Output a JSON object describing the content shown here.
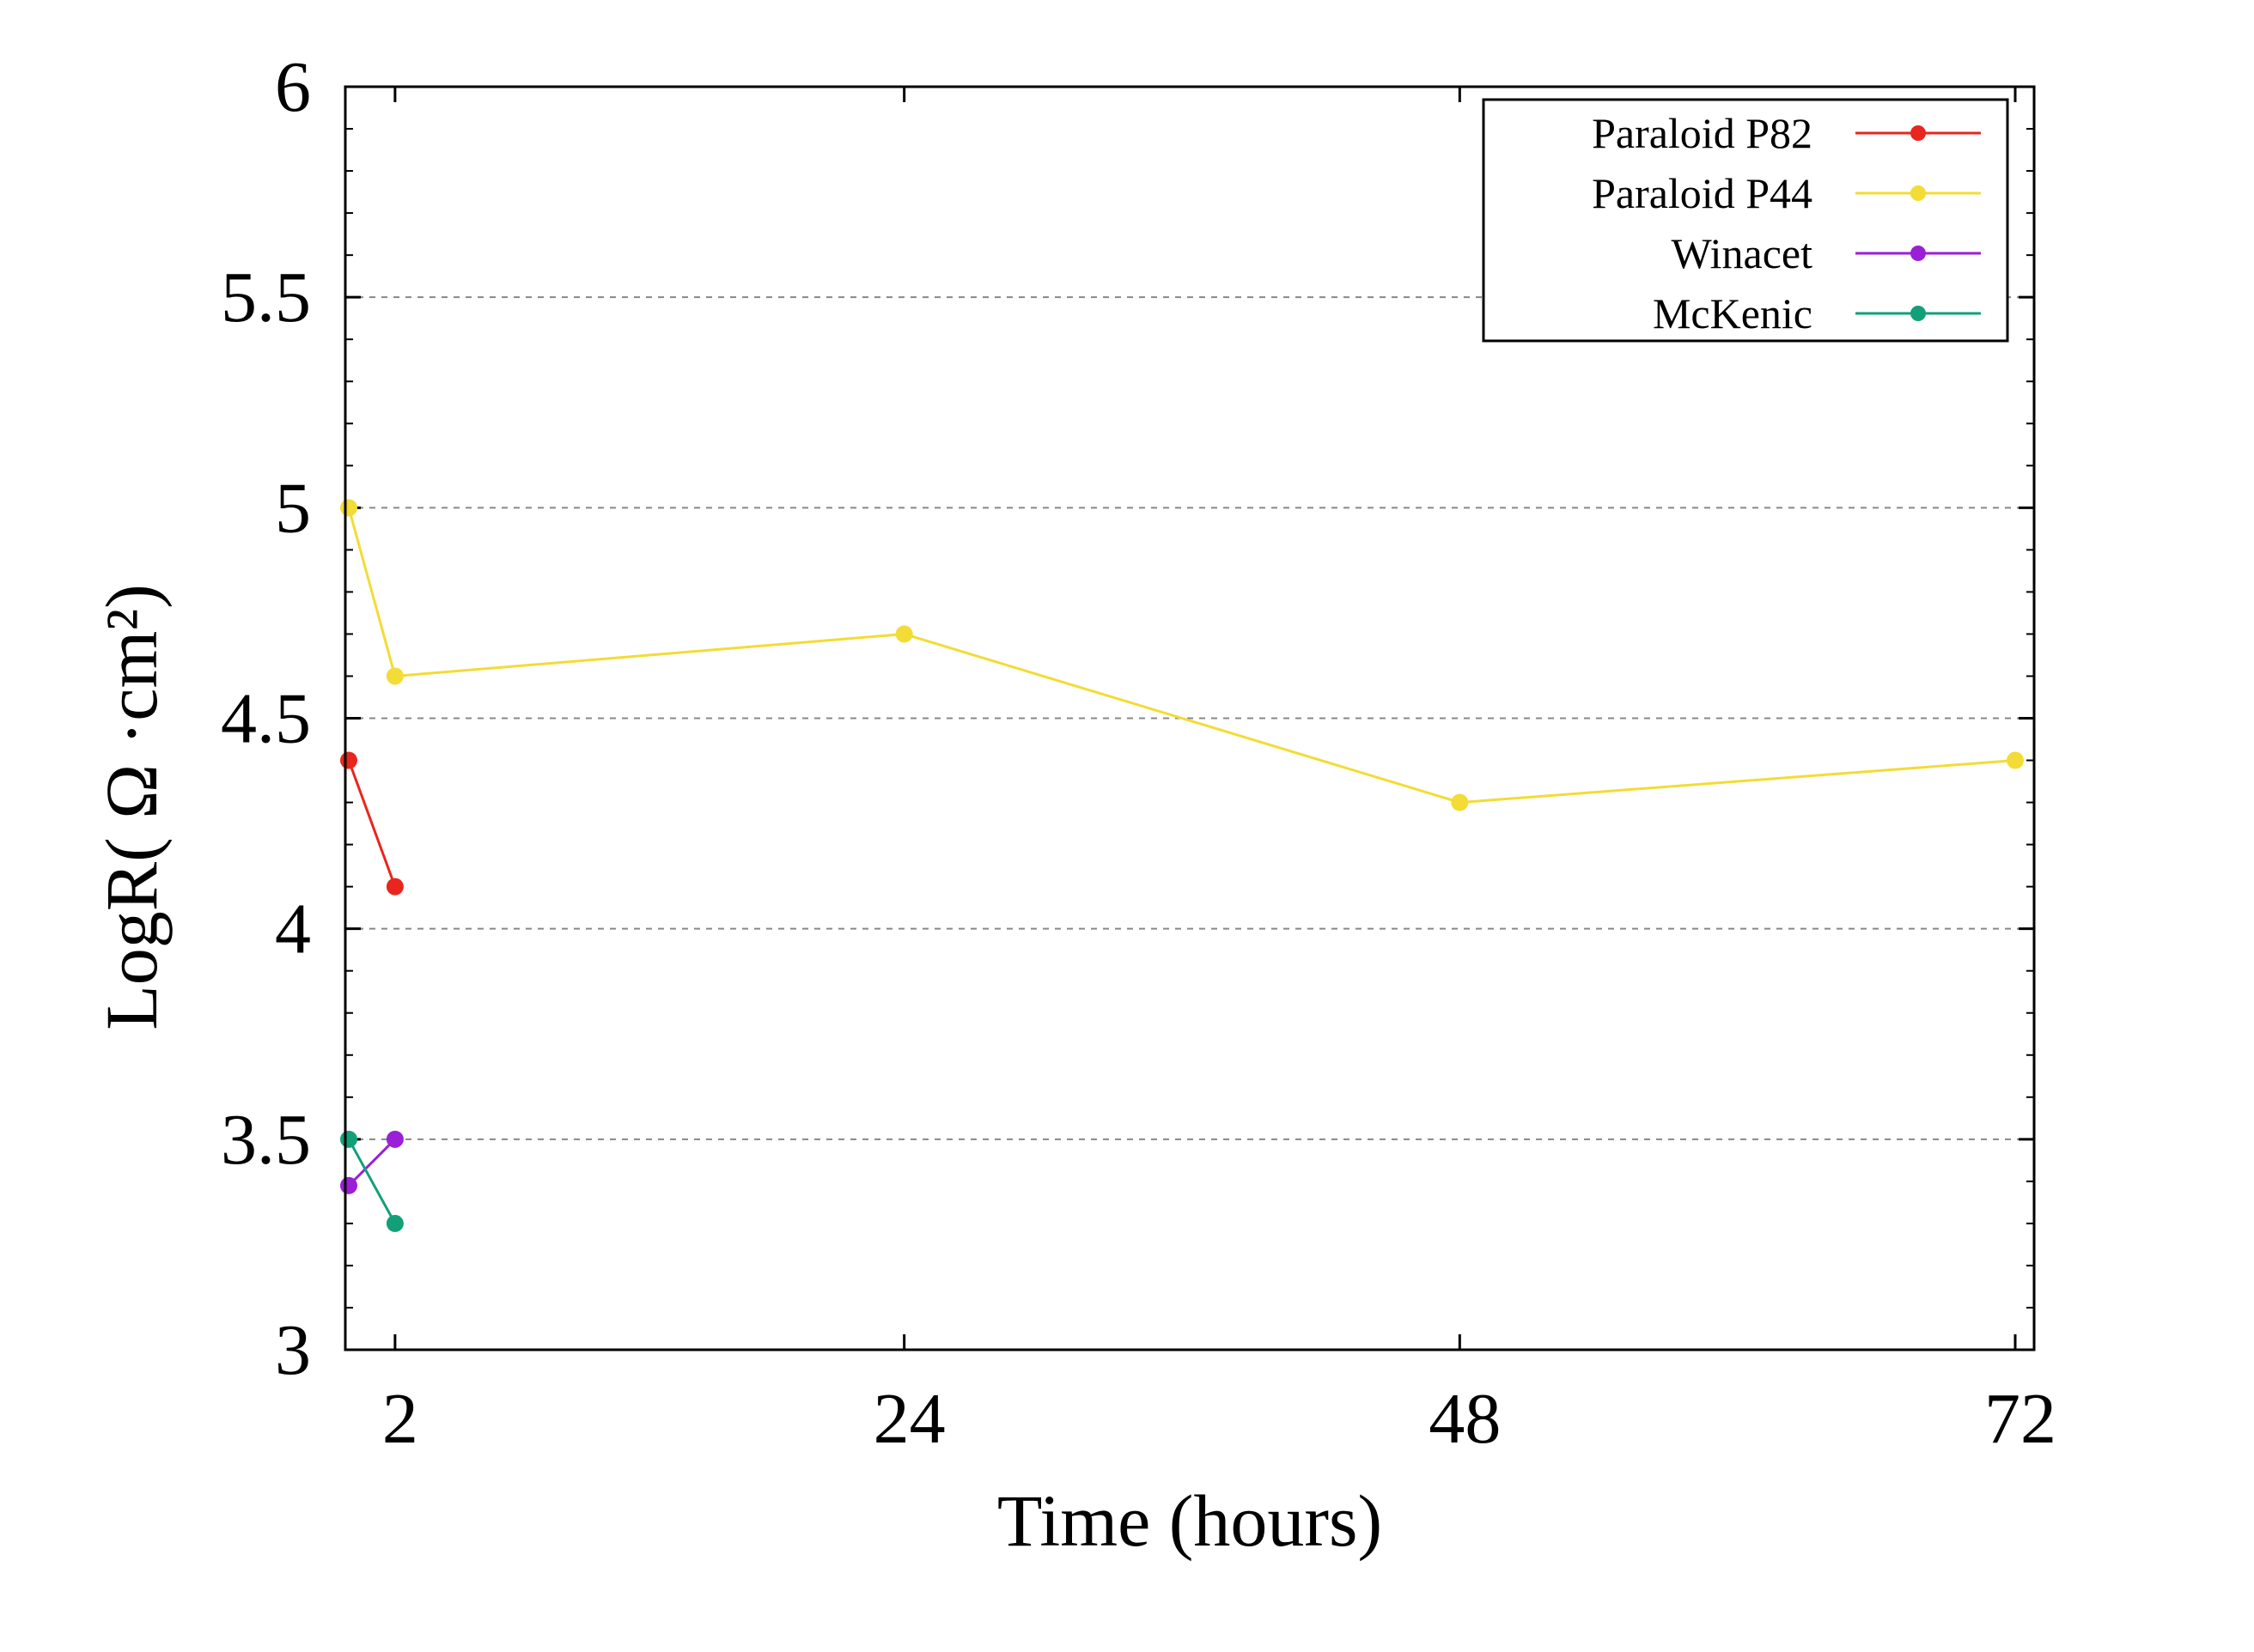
{
  "chart_data": {
    "type": "line",
    "title": "",
    "xlabel": "Time (hours)",
    "ylabel": "LogR( Ω ·cm²)",
    "xlim": [
      0,
      72
    ],
    "ylim": [
      3,
      6
    ],
    "x_ticks": [
      2,
      24,
      48,
      72
    ],
    "x_tick_labels": [
      "2",
      "24",
      "48",
      "72"
    ],
    "y_ticks": [
      3,
      3.5,
      4,
      4.5,
      5,
      5.5,
      6
    ],
    "y_tick_labels": [
      "3",
      "3.5",
      "4",
      "4.5",
      "5",
      "5.5",
      "6"
    ],
    "grid": "horizontal-dashed",
    "legend_position": "top-right",
    "series": [
      {
        "name": "Paraloid P82",
        "color": "#e8261e",
        "x": [
          0,
          2
        ],
        "y": [
          4.4,
          4.1
        ]
      },
      {
        "name": "Paraloid P44",
        "color": "#f2dc35",
        "x": [
          0,
          2,
          24,
          48,
          72
        ],
        "y": [
          5.0,
          4.6,
          4.7,
          4.3,
          4.4
        ]
      },
      {
        "name": "Winacet",
        "color": "#9a1fd6",
        "x": [
          0,
          2
        ],
        "y": [
          3.39,
          3.5
        ]
      },
      {
        "name": "McKenic",
        "color": "#12a079",
        "x": [
          0,
          2
        ],
        "y": [
          3.5,
          3.3
        ]
      }
    ]
  }
}
